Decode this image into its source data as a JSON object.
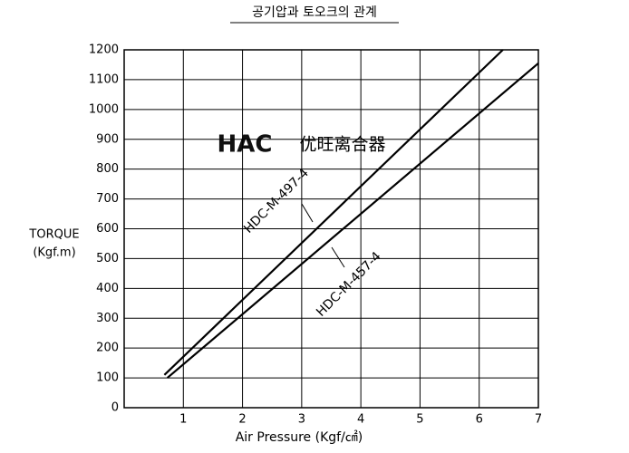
{
  "chart_data": {
    "type": "line",
    "title": "공기압과 토오크의 관계",
    "xlabel": "Air Pressure (Kgf/㎠)",
    "ylabel": [
      "TORQUE",
      "(Kgf.m)"
    ],
    "watermark": {
      "logo": "HAC",
      "text": "优旺离合器"
    },
    "xlim": [
      0,
      7
    ],
    "xticks": [
      1,
      2,
      3,
      4,
      5,
      6,
      7
    ],
    "ylim": [
      0,
      1200
    ],
    "yticks": [
      0,
      100,
      200,
      300,
      400,
      500,
      600,
      700,
      800,
      900,
      1000,
      1100,
      1200
    ],
    "grid": true,
    "series": [
      {
        "name": "HDC-M-497-4",
        "color": "#000000",
        "x": [
          0.68,
          6.4
        ],
        "values": [
          110,
          1200
        ]
      },
      {
        "name": "HDC-M-457-4",
        "color": "#000000",
        "x": [
          0.73,
          7
        ],
        "values": [
          100,
          1155
        ]
      }
    ]
  }
}
